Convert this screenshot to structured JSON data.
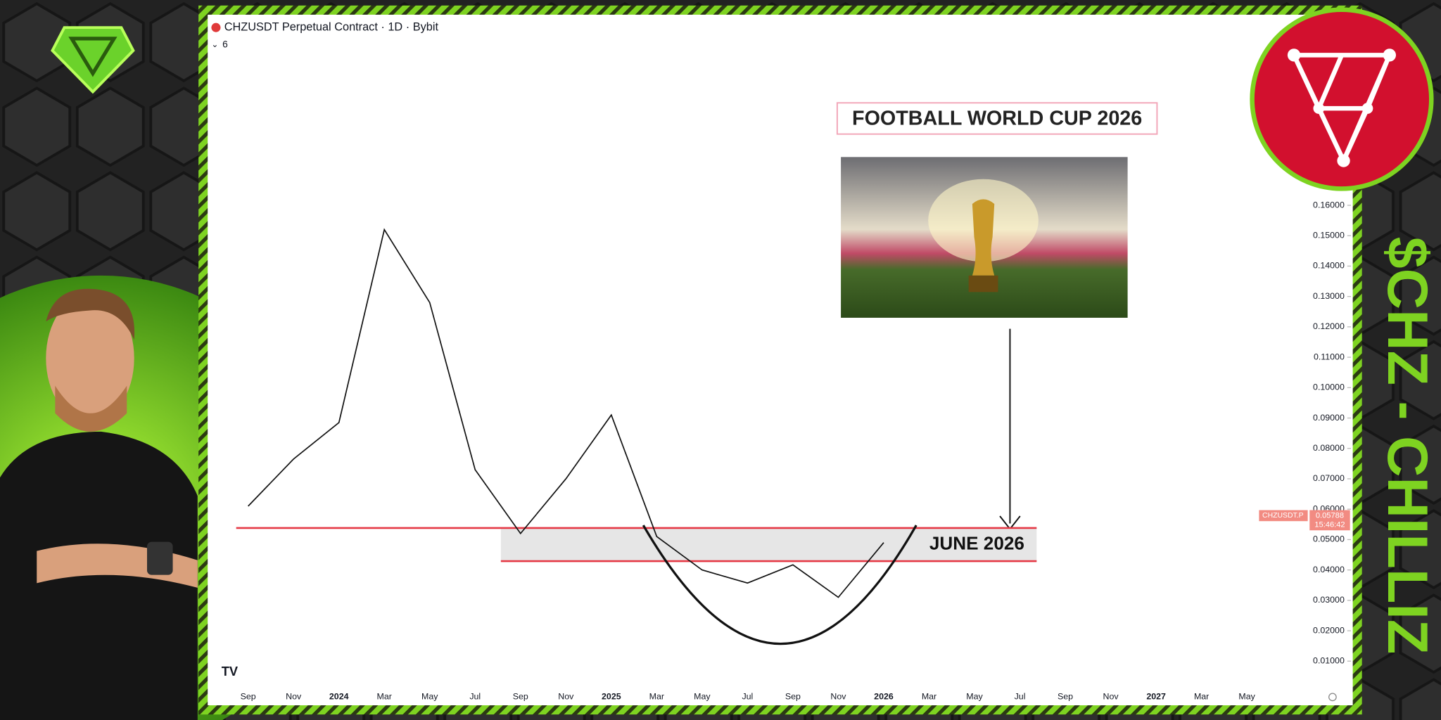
{
  "chart_data": {
    "type": "line",
    "title": "CHZUSDT Perpetual Contract · 1D · Bybit",
    "indicator_count": 6,
    "categories": [
      "Sep",
      "Nov",
      "2024",
      "Mar",
      "May",
      "Jul",
      "Sep",
      "Nov",
      "2025",
      "Mar",
      "May",
      "Jul",
      "Sep",
      "Nov",
      "2026",
      "Mar",
      "May",
      "Jul",
      "Sep",
      "Nov",
      "2027",
      "Mar",
      "May"
    ],
    "series": [
      {
        "name": "CHZUSDT.P",
        "color": "#111111",
        "values": [
          0.061,
          0.0765,
          0.0885,
          0.152,
          0.128,
          0.073,
          0.052,
          0.07,
          0.091,
          0.051,
          0.04,
          0.0357,
          0.0417,
          0.031,
          0.049,
          null,
          null,
          null,
          null,
          null,
          null,
          null,
          null
        ]
      }
    ],
    "ylim": [
      0,
      0.22
    ],
    "yticks": [
      {
        "value": 0.01,
        "label": "0.01000"
      },
      {
        "value": 0.02,
        "label": "0.02000"
      },
      {
        "value": 0.03,
        "label": "0.03000"
      },
      {
        "value": 0.04,
        "label": "0.04000"
      },
      {
        "value": 0.05,
        "label": "0.05000"
      },
      {
        "value": 0.06,
        "label": "0.06000"
      },
      {
        "value": 0.07,
        "label": "0.07000"
      },
      {
        "value": 0.08,
        "label": "0.08000"
      },
      {
        "value": 0.09,
        "label": "0.09000"
      },
      {
        "value": 0.1,
        "label": "0.10000"
      },
      {
        "value": 0.11,
        "label": "0.11000"
      },
      {
        "value": 0.12,
        "label": "0.12000"
      },
      {
        "value": 0.13,
        "label": "0.13000"
      },
      {
        "value": 0.14,
        "label": "0.14000"
      },
      {
        "value": 0.15,
        "label": "0.15000"
      },
      {
        "value": 0.16,
        "label": "0.16000"
      }
    ],
    "zone": [
      0.0429,
      0.0538
    ],
    "zone_color": "#e53945",
    "last_price": {
      "symbol": "CHZUSDT.P",
      "value": 0.05788,
      "time": "15:46:42"
    },
    "annotations": {
      "headline": "FOOTBALL WORLD CUP 2026",
      "zone_label": "JUNE 2026"
    }
  },
  "brand": "$CHZ - CHILLIZ"
}
